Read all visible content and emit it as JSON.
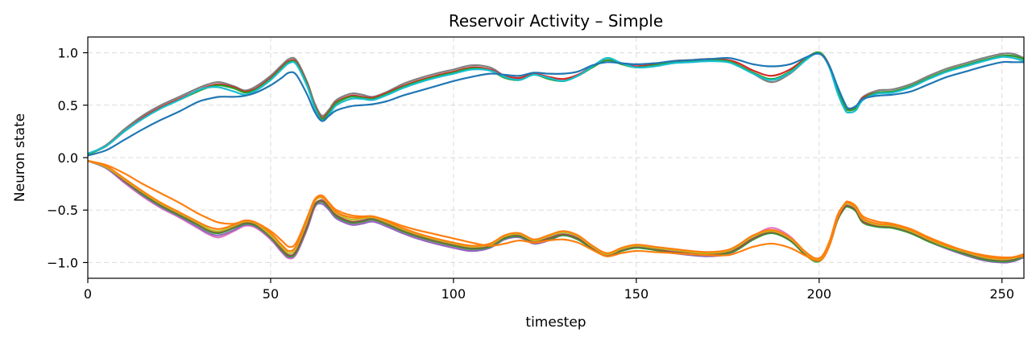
{
  "chart_data": {
    "type": "line",
    "title": "Reservoir Activity – Simple",
    "xlabel": "timestep",
    "ylabel": "Neuron state",
    "xlim": [
      0,
      256
    ],
    "ylim": [
      -1.15,
      1.15
    ],
    "xticks": [
      0,
      50,
      100,
      150,
      200,
      250
    ],
    "yticks": [
      1.0,
      0.5,
      0.0,
      -0.5,
      -1.0
    ],
    "xtick_labels": [
      "0",
      "50",
      "100",
      "150",
      "200",
      "250"
    ],
    "ytick_labels": [
      "1.0",
      "0.5",
      "0.0",
      "−0.5",
      "−1.0"
    ],
    "grid": true,
    "legend": "none",
    "x": [
      0,
      5,
      10,
      15,
      20,
      25,
      30,
      33,
      36,
      40,
      43,
      46,
      50,
      53,
      55,
      57,
      60,
      62,
      64,
      66,
      68,
      72,
      75,
      78,
      82,
      86,
      90,
      95,
      100,
      105,
      110,
      114,
      118,
      122,
      126,
      130,
      134,
      138,
      142,
      146,
      150,
      155,
      160,
      165,
      170,
      175,
      178,
      182,
      187,
      192,
      196,
      199,
      201,
      203,
      205,
      207,
      208,
      210,
      212,
      216,
      220,
      225,
      230,
      235,
      240,
      245,
      250,
      253,
      256
    ],
    "series": [
      {
        "color": "#7f7f7f",
        "values": [
          0.03,
          0.12,
          0.27,
          0.4,
          0.5,
          0.58,
          0.66,
          0.7,
          0.72,
          0.68,
          0.64,
          0.68,
          0.78,
          0.88,
          0.94,
          0.93,
          0.72,
          0.52,
          0.4,
          0.46,
          0.55,
          0.61,
          0.6,
          0.58,
          0.63,
          0.7,
          0.75,
          0.8,
          0.84,
          0.88,
          0.86,
          0.78,
          0.75,
          0.8,
          0.76,
          0.73,
          0.78,
          0.86,
          0.93,
          0.9,
          0.87,
          0.89,
          0.92,
          0.93,
          0.94,
          0.92,
          0.88,
          0.8,
          0.72,
          0.8,
          0.92,
          1.0,
          0.98,
          0.86,
          0.66,
          0.5,
          0.46,
          0.48,
          0.58,
          0.64,
          0.65,
          0.7,
          0.78,
          0.85,
          0.9,
          0.95,
          0.99,
          0.99,
          0.95
        ]
      },
      {
        "color": "#d62728",
        "values": [
          0.03,
          0.11,
          0.25,
          0.38,
          0.48,
          0.56,
          0.64,
          0.68,
          0.7,
          0.67,
          0.63,
          0.66,
          0.76,
          0.86,
          0.92,
          0.91,
          0.7,
          0.5,
          0.38,
          0.44,
          0.53,
          0.59,
          0.58,
          0.57,
          0.62,
          0.68,
          0.73,
          0.78,
          0.82,
          0.86,
          0.84,
          0.78,
          0.76,
          0.8,
          0.77,
          0.75,
          0.79,
          0.87,
          0.93,
          0.9,
          0.87,
          0.89,
          0.92,
          0.93,
          0.94,
          0.93,
          0.9,
          0.83,
          0.78,
          0.84,
          0.94,
          1.0,
          0.98,
          0.86,
          0.66,
          0.5,
          0.46,
          0.48,
          0.57,
          0.62,
          0.63,
          0.68,
          0.76,
          0.83,
          0.88,
          0.93,
          0.97,
          0.97,
          0.94
        ]
      },
      {
        "color": "#2ca02c",
        "values": [
          0.03,
          0.11,
          0.25,
          0.37,
          0.47,
          0.55,
          0.63,
          0.67,
          0.69,
          0.66,
          0.62,
          0.65,
          0.75,
          0.85,
          0.91,
          0.9,
          0.69,
          0.49,
          0.37,
          0.43,
          0.52,
          0.58,
          0.57,
          0.56,
          0.61,
          0.67,
          0.72,
          0.77,
          0.81,
          0.85,
          0.83,
          0.76,
          0.74,
          0.79,
          0.75,
          0.73,
          0.78,
          0.86,
          0.93,
          0.89,
          0.86,
          0.88,
          0.91,
          0.92,
          0.93,
          0.92,
          0.88,
          0.81,
          0.75,
          0.82,
          0.93,
          1.0,
          0.98,
          0.85,
          0.65,
          0.49,
          0.45,
          0.47,
          0.56,
          0.62,
          0.63,
          0.68,
          0.76,
          0.83,
          0.88,
          0.93,
          0.97,
          0.97,
          0.94
        ]
      },
      {
        "color": "#17becf",
        "values": [
          0.04,
          0.11,
          0.25,
          0.37,
          0.47,
          0.55,
          0.64,
          0.67,
          0.67,
          0.63,
          0.6,
          0.64,
          0.74,
          0.84,
          0.9,
          0.89,
          0.68,
          0.48,
          0.35,
          0.41,
          0.5,
          0.56,
          0.56,
          0.55,
          0.6,
          0.66,
          0.71,
          0.76,
          0.8,
          0.84,
          0.83,
          0.77,
          0.74,
          0.79,
          0.76,
          0.73,
          0.78,
          0.87,
          0.95,
          0.9,
          0.86,
          0.87,
          0.9,
          0.91,
          0.92,
          0.91,
          0.87,
          0.8,
          0.74,
          0.81,
          0.92,
          0.99,
          0.97,
          0.84,
          0.62,
          0.46,
          0.43,
          0.45,
          0.55,
          0.61,
          0.62,
          0.67,
          0.75,
          0.82,
          0.87,
          0.92,
          0.96,
          0.95,
          0.92
        ]
      },
      {
        "color": "#1f77b4",
        "values": [
          0.02,
          0.07,
          0.17,
          0.27,
          0.36,
          0.44,
          0.53,
          0.56,
          0.58,
          0.58,
          0.59,
          0.62,
          0.69,
          0.76,
          0.81,
          0.79,
          0.6,
          0.44,
          0.35,
          0.4,
          0.45,
          0.49,
          0.5,
          0.51,
          0.54,
          0.59,
          0.63,
          0.68,
          0.73,
          0.77,
          0.8,
          0.79,
          0.78,
          0.81,
          0.8,
          0.8,
          0.82,
          0.88,
          0.91,
          0.9,
          0.89,
          0.9,
          0.92,
          0.93,
          0.94,
          0.95,
          0.93,
          0.89,
          0.87,
          0.89,
          0.95,
          0.99,
          0.97,
          0.86,
          0.68,
          0.52,
          0.47,
          0.49,
          0.56,
          0.59,
          0.6,
          0.63,
          0.7,
          0.77,
          0.82,
          0.87,
          0.91,
          0.91,
          0.91
        ]
      },
      {
        "color": "#e377c2",
        "values": [
          -0.03,
          -0.1,
          -0.24,
          -0.37,
          -0.48,
          -0.57,
          -0.67,
          -0.73,
          -0.76,
          -0.7,
          -0.65,
          -0.67,
          -0.78,
          -0.9,
          -0.96,
          -0.92,
          -0.68,
          -0.48,
          -0.4,
          -0.48,
          -0.57,
          -0.63,
          -0.62,
          -0.6,
          -0.65,
          -0.71,
          -0.76,
          -0.81,
          -0.85,
          -0.88,
          -0.85,
          -0.76,
          -0.73,
          -0.8,
          -0.76,
          -0.71,
          -0.76,
          -0.86,
          -0.93,
          -0.88,
          -0.84,
          -0.86,
          -0.89,
          -0.91,
          -0.92,
          -0.9,
          -0.85,
          -0.75,
          -0.67,
          -0.75,
          -0.9,
          -0.98,
          -0.95,
          -0.8,
          -0.57,
          -0.47,
          -0.46,
          -0.49,
          -0.6,
          -0.65,
          -0.66,
          -0.71,
          -0.79,
          -0.86,
          -0.92,
          -0.97,
          -0.99,
          -0.98,
          -0.94
        ]
      },
      {
        "color": "#9467bd",
        "values": [
          -0.03,
          -0.1,
          -0.23,
          -0.36,
          -0.47,
          -0.56,
          -0.66,
          -0.72,
          -0.74,
          -0.69,
          -0.64,
          -0.66,
          -0.77,
          -0.89,
          -0.95,
          -0.91,
          -0.67,
          -0.47,
          -0.44,
          -0.5,
          -0.58,
          -0.64,
          -0.63,
          -0.61,
          -0.66,
          -0.72,
          -0.77,
          -0.82,
          -0.86,
          -0.89,
          -0.86,
          -0.78,
          -0.76,
          -0.82,
          -0.79,
          -0.74,
          -0.78,
          -0.87,
          -0.94,
          -0.89,
          -0.86,
          -0.88,
          -0.91,
          -0.93,
          -0.94,
          -0.92,
          -0.87,
          -0.78,
          -0.71,
          -0.78,
          -0.91,
          -0.98,
          -0.95,
          -0.81,
          -0.59,
          -0.48,
          -0.47,
          -0.5,
          -0.61,
          -0.66,
          -0.67,
          -0.72,
          -0.8,
          -0.87,
          -0.93,
          -0.98,
          -1.0,
          -0.99,
          -0.95
        ]
      },
      {
        "color": "#2ca02c",
        "values": [
          -0.03,
          -0.09,
          -0.22,
          -0.35,
          -0.46,
          -0.55,
          -0.64,
          -0.7,
          -0.72,
          -0.67,
          -0.63,
          -0.65,
          -0.76,
          -0.88,
          -0.94,
          -0.9,
          -0.66,
          -0.46,
          -0.42,
          -0.48,
          -0.56,
          -0.62,
          -0.61,
          -0.59,
          -0.64,
          -0.7,
          -0.75,
          -0.8,
          -0.84,
          -0.87,
          -0.85,
          -0.77,
          -0.75,
          -0.81,
          -0.78,
          -0.74,
          -0.78,
          -0.87,
          -0.94,
          -0.89,
          -0.86,
          -0.88,
          -0.91,
          -0.92,
          -0.93,
          -0.91,
          -0.87,
          -0.78,
          -0.72,
          -0.79,
          -0.92,
          -0.99,
          -0.96,
          -0.82,
          -0.6,
          -0.48,
          -0.47,
          -0.51,
          -0.62,
          -0.66,
          -0.67,
          -0.72,
          -0.8,
          -0.86,
          -0.92,
          -0.97,
          -0.99,
          -0.98,
          -0.94
        ]
      },
      {
        "color": "#8c564b",
        "values": [
          -0.03,
          -0.09,
          -0.22,
          -0.34,
          -0.45,
          -0.54,
          -0.63,
          -0.69,
          -0.71,
          -0.66,
          -0.62,
          -0.64,
          -0.75,
          -0.87,
          -0.93,
          -0.89,
          -0.65,
          -0.45,
          -0.41,
          -0.47,
          -0.55,
          -0.61,
          -0.6,
          -0.58,
          -0.63,
          -0.69,
          -0.74,
          -0.79,
          -0.83,
          -0.86,
          -0.84,
          -0.76,
          -0.74,
          -0.8,
          -0.77,
          -0.73,
          -0.77,
          -0.86,
          -0.93,
          -0.88,
          -0.85,
          -0.87,
          -0.9,
          -0.91,
          -0.92,
          -0.9,
          -0.86,
          -0.77,
          -0.71,
          -0.78,
          -0.91,
          -0.98,
          -0.95,
          -0.81,
          -0.59,
          -0.47,
          -0.46,
          -0.5,
          -0.61,
          -0.65,
          -0.66,
          -0.71,
          -0.79,
          -0.85,
          -0.91,
          -0.96,
          -0.98,
          -0.97,
          -0.93
        ]
      },
      {
        "color": "#bcbd22",
        "values": [
          -0.03,
          -0.09,
          -0.21,
          -0.33,
          -0.44,
          -0.53,
          -0.62,
          -0.68,
          -0.7,
          -0.65,
          -0.61,
          -0.63,
          -0.74,
          -0.85,
          -0.91,
          -0.86,
          -0.6,
          -0.42,
          -0.38,
          -0.45,
          -0.53,
          -0.59,
          -0.58,
          -0.57,
          -0.62,
          -0.68,
          -0.73,
          -0.78,
          -0.82,
          -0.85,
          -0.83,
          -0.75,
          -0.73,
          -0.79,
          -0.75,
          -0.71,
          -0.75,
          -0.85,
          -0.92,
          -0.87,
          -0.84,
          -0.86,
          -0.88,
          -0.9,
          -0.91,
          -0.89,
          -0.84,
          -0.75,
          -0.7,
          -0.77,
          -0.9,
          -0.97,
          -0.94,
          -0.79,
          -0.56,
          -0.45,
          -0.44,
          -0.48,
          -0.59,
          -0.64,
          -0.65,
          -0.7,
          -0.78,
          -0.85,
          -0.9,
          -0.95,
          -0.97,
          -0.96,
          -0.93
        ]
      },
      {
        "color": "#ff7f0e",
        "values": [
          -0.03,
          -0.08,
          -0.2,
          -0.32,
          -0.43,
          -0.52,
          -0.61,
          -0.66,
          -0.68,
          -0.64,
          -0.6,
          -0.62,
          -0.72,
          -0.83,
          -0.89,
          -0.84,
          -0.58,
          -0.41,
          -0.37,
          -0.44,
          -0.52,
          -0.57,
          -0.57,
          -0.56,
          -0.61,
          -0.67,
          -0.72,
          -0.77,
          -0.81,
          -0.84,
          -0.82,
          -0.74,
          -0.72,
          -0.78,
          -0.74,
          -0.7,
          -0.74,
          -0.84,
          -0.91,
          -0.86,
          -0.83,
          -0.85,
          -0.87,
          -0.89,
          -0.9,
          -0.88,
          -0.83,
          -0.74,
          -0.69,
          -0.76,
          -0.89,
          -0.96,
          -0.93,
          -0.78,
          -0.55,
          -0.44,
          -0.43,
          -0.47,
          -0.58,
          -0.63,
          -0.64,
          -0.69,
          -0.77,
          -0.84,
          -0.89,
          -0.94,
          -0.96,
          -0.95,
          -0.92
        ]
      },
      {
        "color": "#ff7f0e",
        "values": [
          -0.03,
          -0.07,
          -0.15,
          -0.25,
          -0.34,
          -0.43,
          -0.53,
          -0.58,
          -0.62,
          -0.63,
          -0.6,
          -0.62,
          -0.7,
          -0.79,
          -0.85,
          -0.81,
          -0.57,
          -0.4,
          -0.36,
          -0.43,
          -0.5,
          -0.55,
          -0.56,
          -0.56,
          -0.6,
          -0.65,
          -0.69,
          -0.73,
          -0.77,
          -0.81,
          -0.84,
          -0.82,
          -0.79,
          -0.81,
          -0.79,
          -0.78,
          -0.81,
          -0.88,
          -0.94,
          -0.91,
          -0.89,
          -0.9,
          -0.91,
          -0.92,
          -0.93,
          -0.93,
          -0.9,
          -0.85,
          -0.82,
          -0.86,
          -0.93,
          -0.98,
          -0.96,
          -0.82,
          -0.58,
          -0.44,
          -0.42,
          -0.46,
          -0.56,
          -0.61,
          -0.63,
          -0.68,
          -0.76,
          -0.83,
          -0.89,
          -0.93,
          -0.95,
          -0.95,
          -0.94
        ]
      }
    ]
  }
}
